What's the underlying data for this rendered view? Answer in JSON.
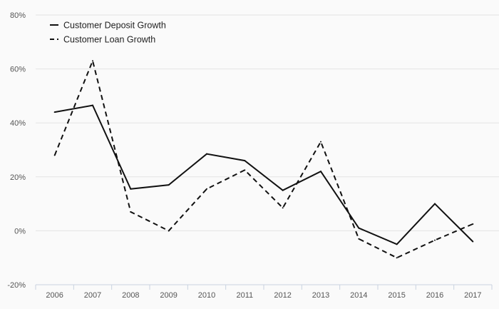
{
  "chart_data": {
    "type": "line",
    "categories": [
      "2006",
      "2007",
      "2008",
      "2009",
      "2010",
      "2011",
      "2012",
      "2013",
      "2014",
      "2015",
      "2016",
      "2017"
    ],
    "series": [
      {
        "name": "Customer Deposit Growth",
        "style": "solid",
        "values": [
          44,
          46.5,
          15.5,
          17,
          28.5,
          26,
          15,
          22,
          1,
          -5,
          10,
          -4
        ]
      },
      {
        "name": "Customer Loan Growth",
        "style": "dashed",
        "values": [
          28,
          63,
          7,
          0,
          15.5,
          22.5,
          8.5,
          33,
          -3,
          -10,
          -3.5,
          2.5
        ]
      }
    ],
    "yticks": [
      "80%",
      "60%",
      "40%",
      "20%",
      "0%",
      "-20%"
    ],
    "ylim": [
      -20,
      80
    ],
    "grid": true,
    "legend_position": "top-left",
    "colors": {
      "line": "#111111",
      "grid": "#e3e3e3",
      "axis": "#c9d3e0",
      "background": "#fafafa"
    }
  }
}
